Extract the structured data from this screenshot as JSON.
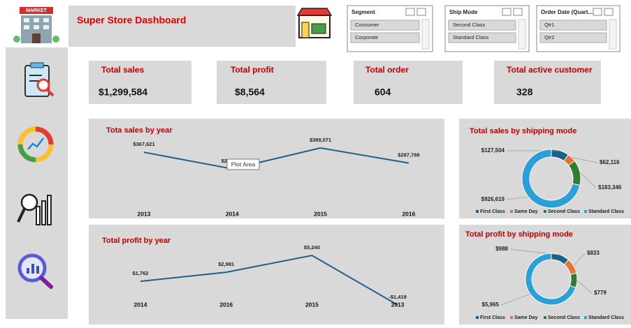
{
  "header": {
    "title": "Super Store Dashboard",
    "logo": "MARKET"
  },
  "slicers": [
    {
      "title": "Segment",
      "items": [
        "Consumer",
        "Corporate"
      ]
    },
    {
      "title": "Ship Mode",
      "items": [
        "Second Class",
        "Standard Class"
      ]
    },
    {
      "title": "Order Date (Quart...",
      "items": [
        "Qtr1",
        "Qtr2"
      ]
    }
  ],
  "kpis": [
    {
      "label": "Total sales",
      "value": "$1,299,584"
    },
    {
      "label": "Total profit",
      "value": "$8,564"
    },
    {
      "label": "Total order",
      "value": "604"
    },
    {
      "label": "Total active customer",
      "value": "328"
    }
  ],
  "tooltip": "Plot Area",
  "chart_data": [
    {
      "type": "line",
      "title": "Tota sales by year",
      "categories": [
        "2013",
        "2014",
        "2015",
        "2016"
      ],
      "values": [
        367621,
        244603,
        399571,
        287789
      ],
      "value_labels": [
        "$367,621",
        "$244,603",
        "$399,571",
        "$287,789"
      ],
      "color": "#1f5f8b"
    },
    {
      "type": "line",
      "title": "Total  profit by year",
      "categories": [
        "2014",
        "2016",
        "2015",
        "2013"
      ],
      "values": [
        1762,
        2981,
        5240,
        -1419
      ],
      "value_labels": [
        "$1,762",
        "$2,981",
        "$5,240",
        "-$1,419"
      ],
      "color": "#1f5f8b"
    },
    {
      "type": "pie",
      "title": "Total sales by shipping mode",
      "categories": [
        "First Class",
        "Same Day",
        "Second Class",
        "Standard Class"
      ],
      "values": [
        127504,
        62116,
        183346,
        926619
      ],
      "value_labels": [
        "$127,504",
        "$62,116",
        "$183,346",
        "$926,619"
      ],
      "colors": [
        "#1f5f8b",
        "#e97132",
        "#2e7d32",
        "#2a9fd8"
      ]
    },
    {
      "type": "pie",
      "title": "Total profit by shipping mode",
      "categories": [
        "First Class",
        "Same Day",
        "Second Class",
        "Standard Class"
      ],
      "values": [
        988,
        833,
        779,
        5965
      ],
      "value_labels": [
        "$988",
        "$833",
        "$779",
        "$5,965"
      ],
      "colors": [
        "#1f5f8b",
        "#e97132",
        "#2e7d32",
        "#2a9fd8"
      ]
    }
  ]
}
